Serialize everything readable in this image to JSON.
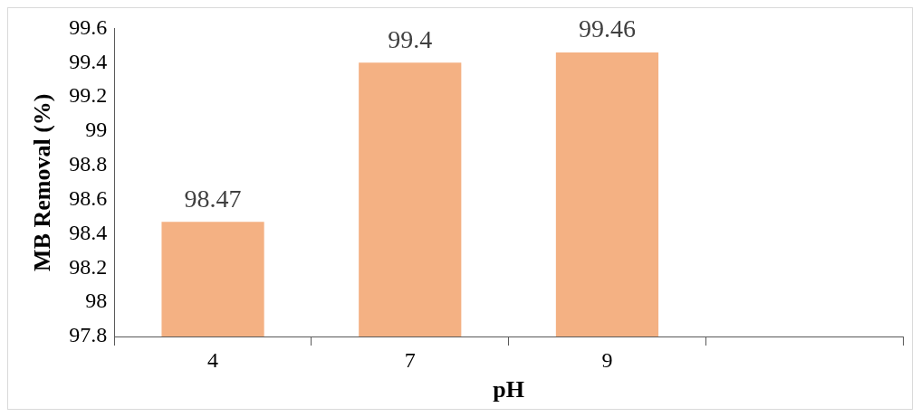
{
  "chart_data": {
    "type": "bar",
    "xlabel": "pH",
    "ylabel": "MB Removal (%)",
    "categories": [
      "4",
      "7",
      "9",
      null
    ],
    "values": [
      98.47,
      99.4,
      99.46,
      null
    ],
    "color": "#f4b183",
    "ylim": [
      97.8,
      99.6
    ],
    "yticks": [
      97.8,
      98,
      98.2,
      98.4,
      98.6,
      98.8,
      99,
      99.2,
      99.4,
      99.6
    ],
    "grid": false,
    "legend": false,
    "data_labels": true
  }
}
